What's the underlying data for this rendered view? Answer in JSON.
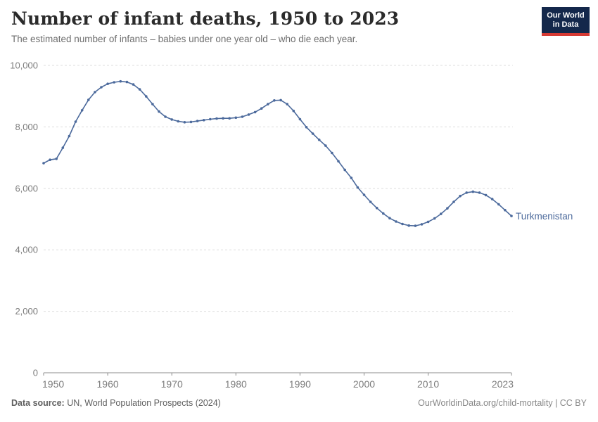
{
  "header": {
    "title": "Number of infant deaths, 1950 to 2023",
    "subtitle": "The estimated number of infants – babies under one year old – who die each year.",
    "logo_line1": "Our World",
    "logo_line2": "in Data"
  },
  "chart_data": {
    "type": "line",
    "title": "Number of infant deaths, 1950 to 2023",
    "xlabel": "",
    "ylabel": "",
    "xlim": [
      1950,
      2023
    ],
    "ylim": [
      0,
      10000
    ],
    "grid": "horizontal-dashed",
    "legend_position": "end-of-line-label",
    "x_ticks": [
      1950,
      1960,
      1970,
      1980,
      1990,
      2000,
      2010,
      2023
    ],
    "x_tick_labels": [
      "1950",
      "1960",
      "1970",
      "1980",
      "1990",
      "2000",
      "2010",
      "2023"
    ],
    "y_ticks": [
      0,
      2000,
      4000,
      6000,
      8000,
      10000
    ],
    "y_tick_labels": [
      "0",
      "2,000",
      "4,000",
      "6,000",
      "8,000",
      "10,000"
    ],
    "series": [
      {
        "name": "Turkmenistan",
        "color": "#4C6A9C",
        "years": [
          1950,
          1951,
          1952,
          1953,
          1954,
          1955,
          1956,
          1957,
          1958,
          1959,
          1960,
          1961,
          1962,
          1963,
          1964,
          1965,
          1966,
          1967,
          1968,
          1969,
          1970,
          1971,
          1972,
          1973,
          1974,
          1975,
          1976,
          1977,
          1978,
          1979,
          1980,
          1981,
          1982,
          1983,
          1984,
          1985,
          1986,
          1987,
          1988,
          1989,
          1990,
          1991,
          1992,
          1993,
          1994,
          1995,
          1996,
          1997,
          1998,
          1999,
          2000,
          2001,
          2002,
          2003,
          2004,
          2005,
          2006,
          2007,
          2008,
          2009,
          2010,
          2011,
          2012,
          2013,
          2014,
          2015,
          2016,
          2017,
          2018,
          2019,
          2020,
          2021,
          2022,
          2023
        ],
        "values": [
          6820,
          6930,
          6960,
          7320,
          7700,
          8170,
          8540,
          8880,
          9130,
          9290,
          9400,
          9450,
          9480,
          9460,
          9380,
          9220,
          8990,
          8740,
          8500,
          8330,
          8240,
          8180,
          8150,
          8160,
          8190,
          8220,
          8250,
          8270,
          8280,
          8280,
          8300,
          8330,
          8400,
          8480,
          8600,
          8740,
          8860,
          8870,
          8740,
          8520,
          8250,
          7990,
          7780,
          7580,
          7390,
          7150,
          6880,
          6600,
          6340,
          6030,
          5790,
          5560,
          5360,
          5180,
          5030,
          4920,
          4840,
          4790,
          4780,
          4830,
          4910,
          5020,
          5170,
          5350,
          5560,
          5750,
          5860,
          5890,
          5860,
          5780,
          5650,
          5480,
          5290,
          5100
        ]
      }
    ],
    "colors": {
      "gridline": "#dddddd",
      "axis": "#8c8c8c",
      "tick_label": "#7d7d7d"
    }
  },
  "footer": {
    "source_label": "Data source:",
    "source_text": " UN, World Population Prospects (2024)",
    "credit": "OurWorldinData.org/child-mortality | CC BY"
  }
}
